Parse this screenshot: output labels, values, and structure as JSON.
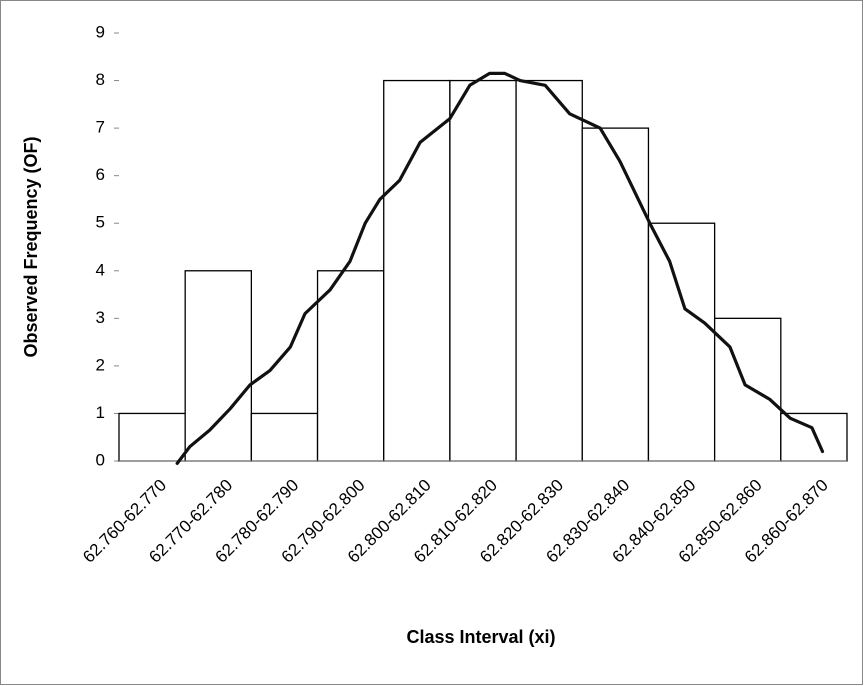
{
  "chart_data": {
    "type": "bar",
    "x_label": "Class Interval (xi)",
    "y_label": "Observed Frequency (OF)",
    "categories": [
      "62.760-62.770",
      "62.770-62.780",
      "62.780-62.790",
      "62.790-62.800",
      "62.800-62.810",
      "62.810-62.820",
      "62.820-62.830",
      "62.830-62.840",
      "62.840-62.850",
      "62.850-62.860",
      "62.860-62.870"
    ],
    "values": [
      1,
      4,
      1,
      4,
      8,
      8,
      8,
      7,
      5,
      3,
      1
    ],
    "color": "#ffffff",
    "ylim": [
      0,
      9
    ],
    "yticks": [
      0,
      1,
      2,
      3,
      4,
      5,
      6,
      7,
      8,
      9
    ],
    "curve": {
      "color": "#111111",
      "x": [
        0.88,
        1.07,
        1.37,
        1.68,
        1.98,
        2.28,
        2.59,
        2.81,
        3.19,
        3.49,
        3.72,
        3.94,
        4.24,
        4.55,
        5.0,
        5.3,
        5.6,
        5.83,
        6.06,
        6.44,
        6.81,
        7.27,
        7.57,
        8.02,
        8.32,
        8.55,
        8.85,
        9.23,
        9.46,
        9.83,
        10.14,
        10.47,
        10.63
      ],
      "values": [
        -0.05,
        0.3,
        0.65,
        1.1,
        1.6,
        1.9,
        2.4,
        3.1,
        3.6,
        4.2,
        5.0,
        5.5,
        5.9,
        6.7,
        7.2,
        7.9,
        8.15,
        8.15,
        8.0,
        7.9,
        7.3,
        7.0,
        6.3,
        5.0,
        4.2,
        3.2,
        2.9,
        2.4,
        1.6,
        1.3,
        0.9,
        0.7,
        0.2
      ]
    }
  }
}
